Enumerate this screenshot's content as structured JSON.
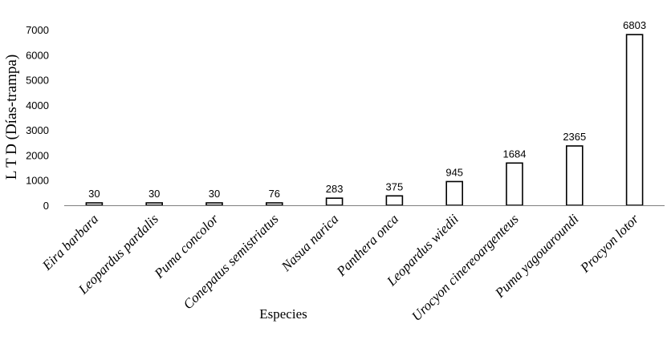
{
  "chart_data": {
    "type": "bar",
    "xlabel": "Especies",
    "ylabel": "L T D (Días-trampa)",
    "ylim": [
      0,
      7000
    ],
    "yticks": [
      0,
      1000,
      2000,
      3000,
      4000,
      5000,
      6000,
      7000
    ],
    "grid": false,
    "legend": "none",
    "categories": [
      "Eira barbara",
      "Leopardus pardalis",
      "Puma concolor",
      "Conepatus semistriatus",
      "Nasua narica",
      "Panthera onca",
      "Leopardus wiedii",
      "Urocyon cinereoargenteus",
      "Puma yagouaroundi",
      "Procyon lotor"
    ],
    "values": [
      30,
      30,
      30,
      76,
      283,
      375,
      945,
      1684,
      2365,
      6803
    ],
    "colors": {
      "bar_fill": "#ffffff",
      "bar_stroke": "#000000",
      "axis": "#7f7f7f"
    }
  }
}
